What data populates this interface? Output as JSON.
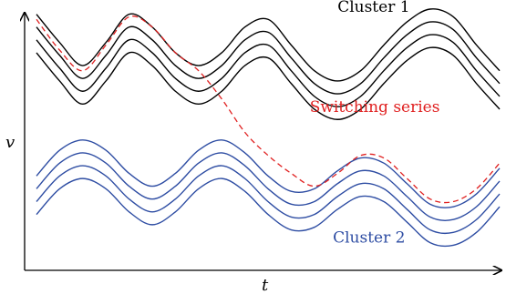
{
  "colors": {
    "cluster_1": "#000000",
    "cluster_2": "#2e4da3",
    "switching": "#e02020",
    "axis": "#000000"
  },
  "chart_data": {
    "type": "line",
    "title": "",
    "xlabel": "t",
    "ylabel": "v",
    "xlim": [
      0,
      1
    ],
    "ylim": [
      0,
      1
    ],
    "grid": false,
    "legend": "none",
    "series": [
      {
        "name": "",
        "group": "cluster_1",
        "x": [
          0.0,
          0.05,
          0.1,
          0.15,
          0.2,
          0.25,
          0.3,
          0.35,
          0.4,
          0.45,
          0.5,
          0.55,
          0.6,
          0.65,
          0.7,
          0.75,
          0.8,
          0.85,
          0.9,
          0.95,
          1.0
        ],
        "y": [
          0.98,
          0.87,
          0.78,
          0.87,
          0.98,
          0.93,
          0.83,
          0.78,
          0.83,
          0.93,
          0.96,
          0.86,
          0.76,
          0.72,
          0.76,
          0.86,
          0.95,
          1.0,
          0.97,
          0.86,
          0.76
        ]
      },
      {
        "name": "",
        "group": "cluster_1",
        "x": [
          0.0,
          0.05,
          0.1,
          0.15,
          0.2,
          0.25,
          0.3,
          0.35,
          0.4,
          0.45,
          0.5,
          0.55,
          0.6,
          0.65,
          0.7,
          0.75,
          0.8,
          0.85,
          0.9,
          0.95,
          1.0
        ],
        "y": [
          0.93,
          0.82,
          0.73,
          0.82,
          0.93,
          0.88,
          0.78,
          0.73,
          0.78,
          0.88,
          0.91,
          0.81,
          0.71,
          0.67,
          0.71,
          0.81,
          0.9,
          0.95,
          0.92,
          0.81,
          0.71
        ]
      },
      {
        "name": "",
        "group": "cluster_1",
        "x": [
          0.0,
          0.05,
          0.1,
          0.15,
          0.2,
          0.25,
          0.3,
          0.35,
          0.4,
          0.45,
          0.5,
          0.55,
          0.6,
          0.65,
          0.7,
          0.75,
          0.8,
          0.85,
          0.9,
          0.95,
          1.0
        ],
        "y": [
          0.88,
          0.77,
          0.68,
          0.77,
          0.88,
          0.83,
          0.73,
          0.68,
          0.73,
          0.83,
          0.86,
          0.76,
          0.66,
          0.62,
          0.66,
          0.76,
          0.85,
          0.9,
          0.87,
          0.76,
          0.66
        ]
      },
      {
        "name": "",
        "group": "cluster_1",
        "x": [
          0.0,
          0.05,
          0.1,
          0.15,
          0.2,
          0.25,
          0.3,
          0.35,
          0.4,
          0.45,
          0.5,
          0.55,
          0.6,
          0.65,
          0.7,
          0.75,
          0.8,
          0.85,
          0.9,
          0.95,
          1.0
        ],
        "y": [
          0.83,
          0.72,
          0.63,
          0.72,
          0.83,
          0.78,
          0.68,
          0.63,
          0.68,
          0.78,
          0.81,
          0.71,
          0.61,
          0.57,
          0.61,
          0.71,
          0.8,
          0.85,
          0.82,
          0.71,
          0.61
        ]
      },
      {
        "name": "",
        "group": "cluster_2",
        "x": [
          0.0,
          0.05,
          0.1,
          0.15,
          0.2,
          0.25,
          0.3,
          0.35,
          0.4,
          0.45,
          0.5,
          0.55,
          0.6,
          0.65,
          0.7,
          0.75,
          0.8,
          0.85,
          0.9,
          0.95,
          1.0
        ],
        "y": [
          0.35,
          0.45,
          0.49,
          0.45,
          0.36,
          0.31,
          0.36,
          0.45,
          0.49,
          0.44,
          0.35,
          0.29,
          0.3,
          0.37,
          0.42,
          0.4,
          0.32,
          0.24,
          0.23,
          0.28,
          0.38
        ]
      },
      {
        "name": "",
        "group": "cluster_2",
        "x": [
          0.0,
          0.05,
          0.1,
          0.15,
          0.2,
          0.25,
          0.3,
          0.35,
          0.4,
          0.45,
          0.5,
          0.55,
          0.6,
          0.65,
          0.7,
          0.75,
          0.8,
          0.85,
          0.9,
          0.95,
          1.0
        ],
        "y": [
          0.3,
          0.4,
          0.44,
          0.4,
          0.31,
          0.26,
          0.31,
          0.4,
          0.44,
          0.39,
          0.3,
          0.24,
          0.25,
          0.32,
          0.37,
          0.35,
          0.27,
          0.19,
          0.18,
          0.23,
          0.33
        ]
      },
      {
        "name": "",
        "group": "cluster_2",
        "x": [
          0.0,
          0.05,
          0.1,
          0.15,
          0.2,
          0.25,
          0.3,
          0.35,
          0.4,
          0.45,
          0.5,
          0.55,
          0.6,
          0.65,
          0.7,
          0.75,
          0.8,
          0.85,
          0.9,
          0.95,
          1.0
        ],
        "y": [
          0.25,
          0.35,
          0.39,
          0.35,
          0.26,
          0.21,
          0.26,
          0.35,
          0.39,
          0.34,
          0.25,
          0.19,
          0.2,
          0.27,
          0.32,
          0.3,
          0.22,
          0.14,
          0.13,
          0.18,
          0.28
        ]
      },
      {
        "name": "",
        "group": "cluster_2",
        "x": [
          0.0,
          0.05,
          0.1,
          0.15,
          0.2,
          0.25,
          0.3,
          0.35,
          0.4,
          0.45,
          0.5,
          0.55,
          0.6,
          0.65,
          0.7,
          0.75,
          0.8,
          0.85,
          0.9,
          0.95,
          1.0
        ],
        "y": [
          0.2,
          0.3,
          0.34,
          0.3,
          0.21,
          0.16,
          0.21,
          0.3,
          0.34,
          0.29,
          0.2,
          0.14,
          0.15,
          0.22,
          0.27,
          0.25,
          0.17,
          0.09,
          0.08,
          0.13,
          0.23
        ]
      },
      {
        "name": "",
        "group": "switching",
        "dashed": true,
        "x": [
          0.0,
          0.05,
          0.1,
          0.15,
          0.2,
          0.25,
          0.3,
          0.35,
          0.4,
          0.45,
          0.5,
          0.55,
          0.6,
          0.65,
          0.7,
          0.75,
          0.8,
          0.85,
          0.9,
          0.95,
          1.0
        ],
        "y": [
          0.96,
          0.84,
          0.76,
          0.86,
          0.97,
          0.93,
          0.83,
          0.76,
          0.65,
          0.52,
          0.43,
          0.36,
          0.31,
          0.36,
          0.43,
          0.42,
          0.34,
          0.26,
          0.25,
          0.3,
          0.4
        ]
      }
    ],
    "annotations": [
      {
        "text": "Cluster 1",
        "group": "cluster_1",
        "x": 0.65,
        "y": 0.99
      },
      {
        "text": "Switching series",
        "group": "switching",
        "x": 0.59,
        "y": 0.6
      },
      {
        "text": "Cluster 2",
        "group": "cluster_2",
        "x": 0.64,
        "y": 0.09
      }
    ]
  }
}
